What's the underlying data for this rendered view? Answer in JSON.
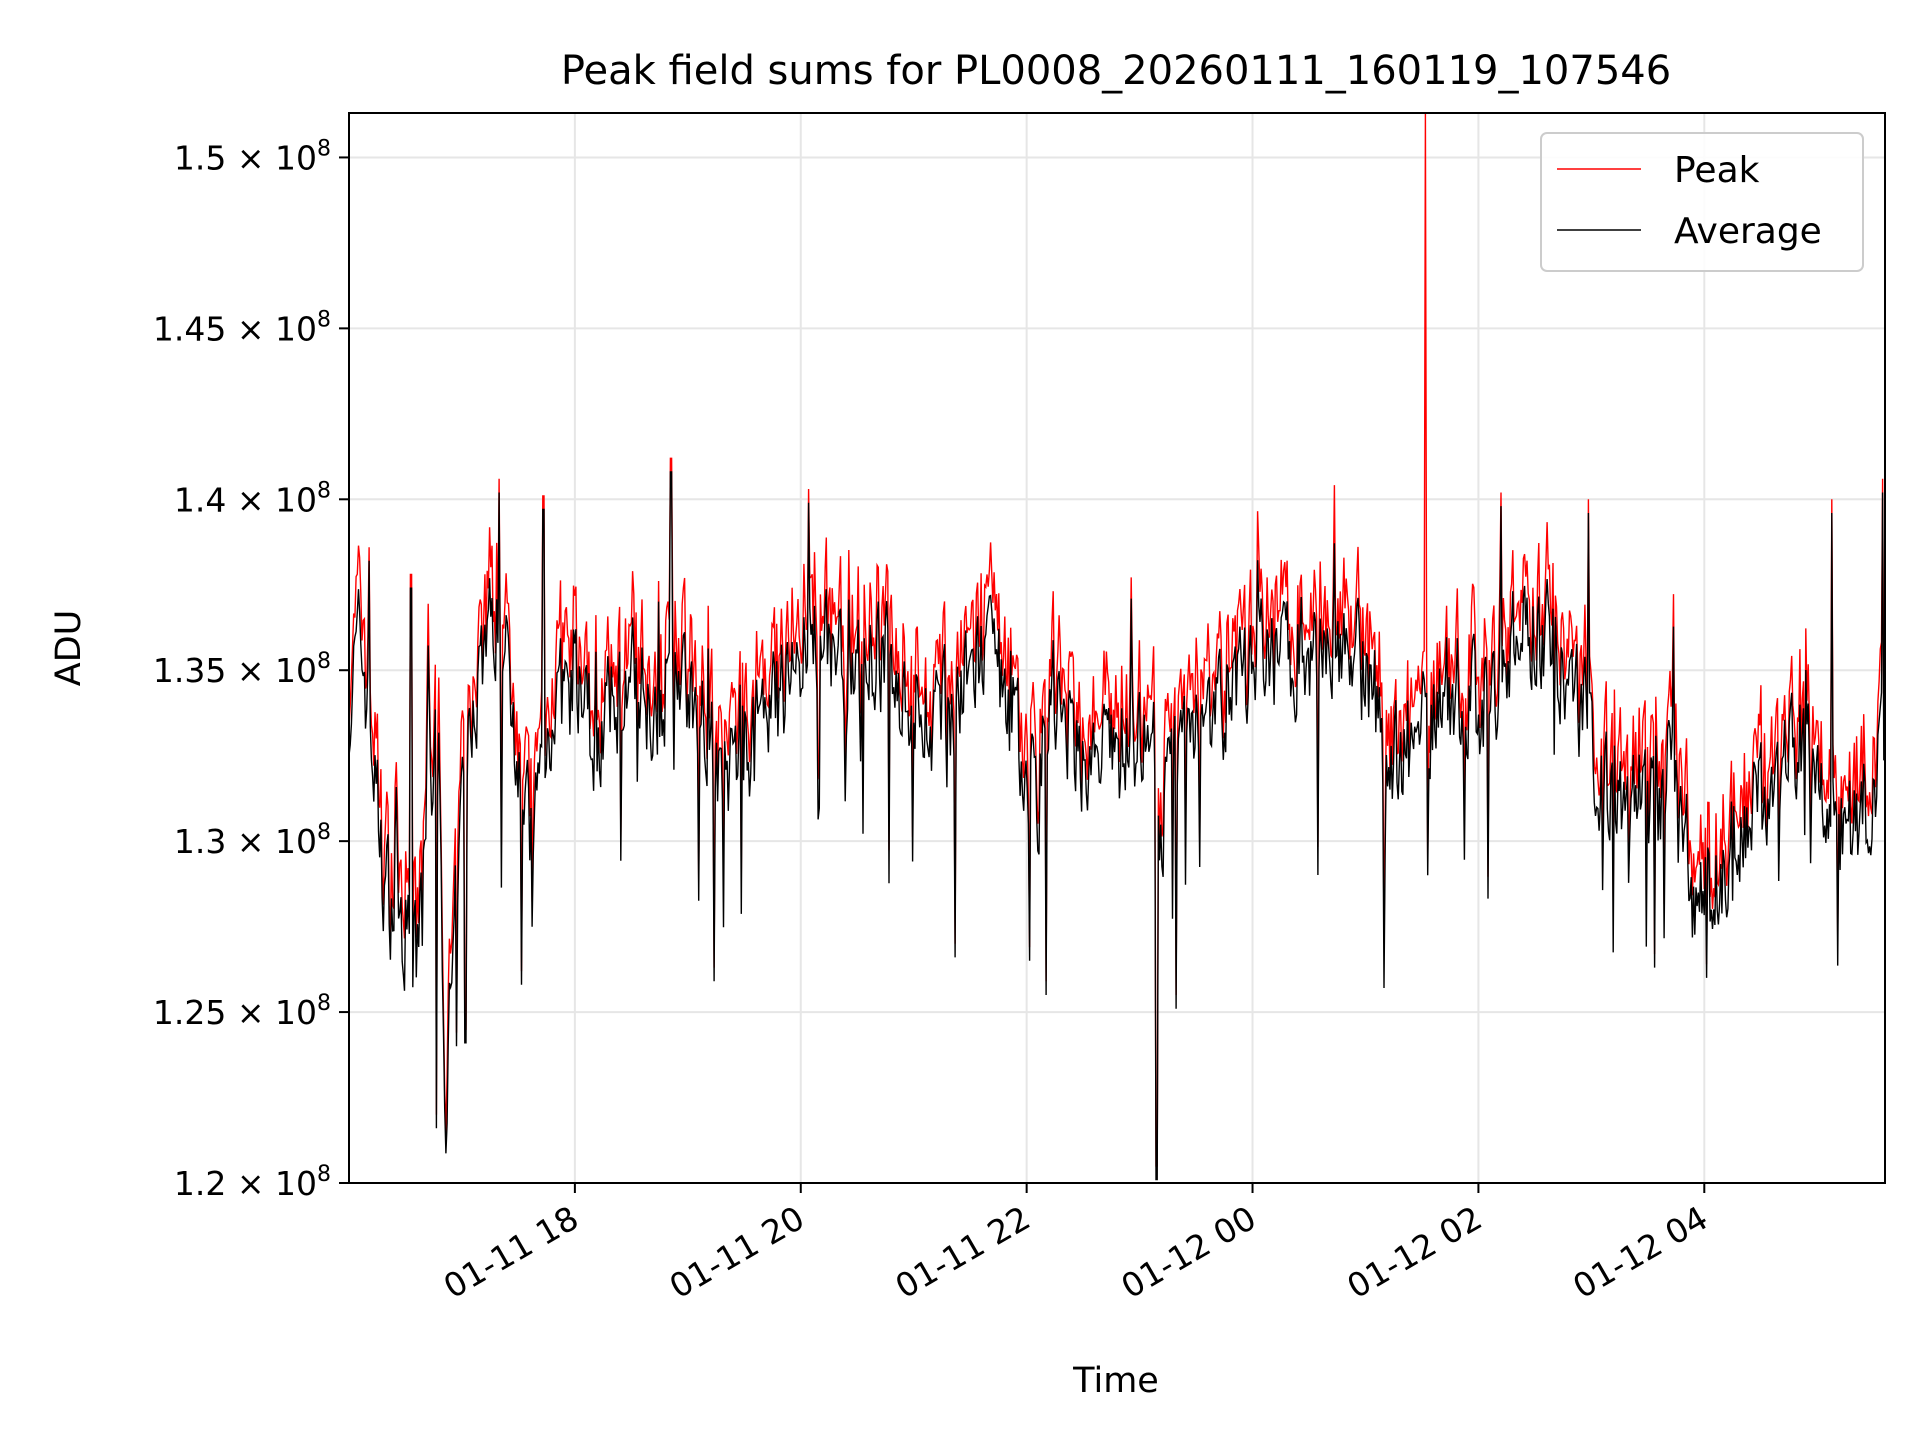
{
  "chart_data": {
    "type": "line",
    "title": "Peak field sums for PL0008_20260111_160119_107546",
    "xlabel": "Time",
    "ylabel": "ADU",
    "x_range_hours": [
      16.0,
      29.6
    ],
    "ylim": [
      120000000,
      151300000
    ],
    "x_ticks": [
      {
        "label": "01-11 18",
        "hour": 18
      },
      {
        "label": "01-11 20",
        "hour": 20
      },
      {
        "label": "01-11 22",
        "hour": 22
      },
      {
        "label": "01-12 00",
        "hour": 24
      },
      {
        "label": "01-12 02",
        "hour": 26
      },
      {
        "label": "01-12 04",
        "hour": 28
      }
    ],
    "y_ticks": [
      {
        "mantissa": "1.2",
        "exponent": "8",
        "value": 120000000
      },
      {
        "mantissa": "1.25",
        "exponent": "8",
        "value": 125000000
      },
      {
        "mantissa": "1.3",
        "exponent": "8",
        "value": 130000000
      },
      {
        "mantissa": "1.35",
        "exponent": "8",
        "value": 135000000
      },
      {
        "mantissa": "1.4",
        "exponent": "8",
        "value": 140000000
      },
      {
        "mantissa": "1.45",
        "exponent": "8",
        "value": 145000000
      },
      {
        "mantissa": "1.5",
        "exponent": "8",
        "value": 150000000
      }
    ],
    "y_tick_multiplier": "× 10",
    "grid": true,
    "legend_position": "top-right",
    "series": [
      {
        "name": "Peak",
        "color": "#ff0000",
        "offset": 500000
      },
      {
        "name": "Average",
        "color": "#000000",
        "offset": 0
      }
    ],
    "baseline_points": [
      [
        16.0,
        134.0
      ],
      [
        16.1,
        136.0
      ],
      [
        16.2,
        133.0
      ],
      [
        16.3,
        129.0
      ],
      [
        16.4,
        128.0
      ],
      [
        16.5,
        127.5
      ],
      [
        16.6,
        126.5
      ],
      [
        16.7,
        133.0
      ],
      [
        16.8,
        132.0
      ],
      [
        16.85,
        122.0
      ],
      [
        16.9,
        125.0
      ],
      [
        17.0,
        131.0
      ],
      [
        17.1,
        134.0
      ],
      [
        17.2,
        136.0
      ],
      [
        17.3,
        136.5
      ],
      [
        17.4,
        135.0
      ],
      [
        17.5,
        133.0
      ],
      [
        17.6,
        130.0
      ],
      [
        17.7,
        132.0
      ],
      [
        17.8,
        134.0
      ],
      [
        18.0,
        134.5
      ],
      [
        18.2,
        133.0
      ],
      [
        18.5,
        135.0
      ],
      [
        18.7,
        134.0
      ],
      [
        18.9,
        135.0
      ],
      [
        19.0,
        134.5
      ],
      [
        19.2,
        133.5
      ],
      [
        19.3,
        131.0
      ],
      [
        19.4,
        132.5
      ],
      [
        19.6,
        133.0
      ],
      [
        19.8,
        134.0
      ],
      [
        20.0,
        135.5
      ],
      [
        20.1,
        136.0
      ],
      [
        20.3,
        135.5
      ],
      [
        20.5,
        135.0
      ],
      [
        20.7,
        135.5
      ],
      [
        21.0,
        134.0
      ],
      [
        21.2,
        133.5
      ],
      [
        21.4,
        134.0
      ],
      [
        21.6,
        135.5
      ],
      [
        21.8,
        134.5
      ],
      [
        22.0,
        132.0
      ],
      [
        22.1,
        131.5
      ],
      [
        22.2,
        134.0
      ],
      [
        22.4,
        133.0
      ],
      [
        22.6,
        132.0
      ],
      [
        22.8,
        133.0
      ],
      [
        23.0,
        133.0
      ],
      [
        23.1,
        132.0
      ],
      [
        23.2,
        130.0
      ],
      [
        23.3,
        132.5
      ],
      [
        23.5,
        134.0
      ],
      [
        23.7,
        134.0
      ],
      [
        24.0,
        135.0
      ],
      [
        24.2,
        135.5
      ],
      [
        24.5,
        135.5
      ],
      [
        24.7,
        136.0
      ],
      [
        24.9,
        135.5
      ],
      [
        25.1,
        134.0
      ],
      [
        25.2,
        132.0
      ],
      [
        25.4,
        133.0
      ],
      [
        25.6,
        134.0
      ],
      [
        25.8,
        134.5
      ],
      [
        26.0,
        134.0
      ],
      [
        26.2,
        135.0
      ],
      [
        26.4,
        136.5
      ],
      [
        26.6,
        136.0
      ],
      [
        26.8,
        135.0
      ],
      [
        27.0,
        133.0
      ],
      [
        27.2,
        131.0
      ],
      [
        27.4,
        131.5
      ],
      [
        27.6,
        131.0
      ],
      [
        27.7,
        132.5
      ],
      [
        27.8,
        130.5
      ],
      [
        27.9,
        128.5
      ],
      [
        28.0,
        128.5
      ],
      [
        28.2,
        129.5
      ],
      [
        28.4,
        130.5
      ],
      [
        28.6,
        131.5
      ],
      [
        28.8,
        132.5
      ],
      [
        28.9,
        133.0
      ],
      [
        29.0,
        131.5
      ],
      [
        29.2,
        130.5
      ],
      [
        29.4,
        131.0
      ],
      [
        29.5,
        130.5
      ],
      [
        29.6,
        133.5
      ]
    ],
    "spikes": [
      {
        "hour": 16.18,
        "value": 138.2
      },
      {
        "hour": 16.55,
        "value": 137.4
      },
      {
        "hour": 16.77,
        "value": 121.6
      },
      {
        "hour": 16.95,
        "value": 124.0
      },
      {
        "hour": 17.03,
        "value": 124.1
      },
      {
        "hour": 17.33,
        "value": 140.2
      },
      {
        "hour": 17.53,
        "value": 125.8
      },
      {
        "hour": 17.72,
        "value": 139.7
      },
      {
        "hour": 18.85,
        "value": 140.8
      },
      {
        "hour": 19.23,
        "value": 125.9
      },
      {
        "hour": 20.07,
        "value": 139.9
      },
      {
        "hour": 21.37,
        "value": 126.6
      },
      {
        "hour": 22.03,
        "value": 126.5
      },
      {
        "hour": 22.17,
        "value": 125.5
      },
      {
        "hour": 23.15,
        "value": 120.1
      },
      {
        "hour": 23.32,
        "value": 125.1
      },
      {
        "hour": 25.53,
        "value": 151.3
      },
      {
        "hour": 25.55,
        "value": 129.0
      },
      {
        "hour": 26.2,
        "value": 139.8
      },
      {
        "hour": 26.97,
        "value": 139.6
      },
      {
        "hour": 27.56,
        "value": 126.3
      },
      {
        "hour": 28.02,
        "value": 126.0
      },
      {
        "hour": 29.13,
        "value": 139.6
      },
      {
        "hour": 29.58,
        "value": 140.2
      }
    ]
  }
}
